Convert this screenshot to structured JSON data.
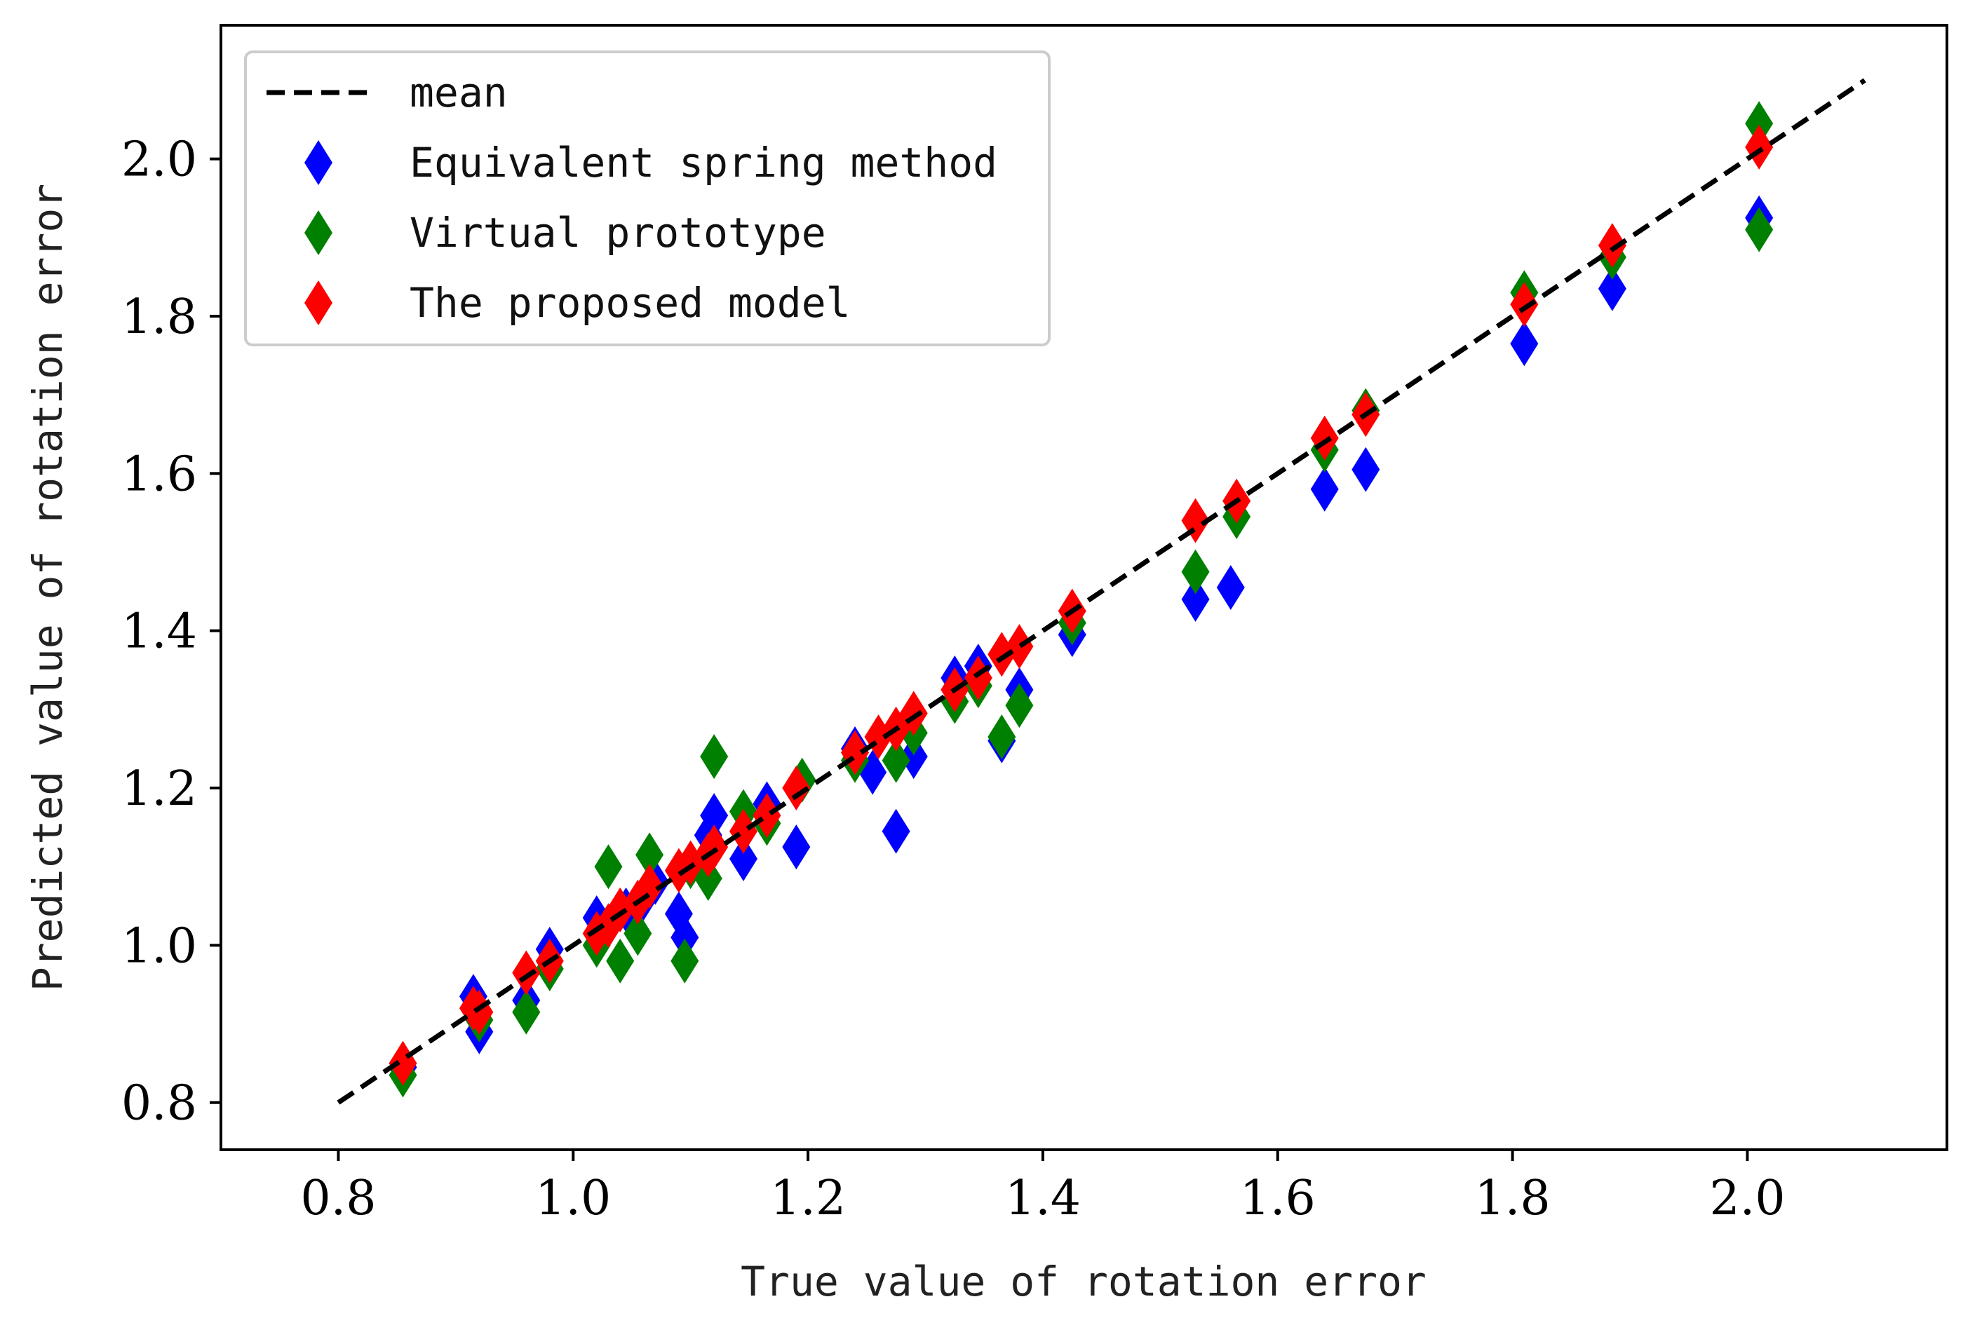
{
  "chart_data": {
    "type": "scatter",
    "title": "",
    "xlabel": "True value of rotation error",
    "ylabel": "Predicted value of rotation error",
    "xlim": [
      0.7,
      2.17
    ],
    "ylim": [
      0.74,
      2.17
    ],
    "xticks": [
      {
        "value": 0.8,
        "label": "0.8"
      },
      {
        "value": 1.0,
        "label": "1.0"
      },
      {
        "value": 1.2,
        "label": "1.2"
      },
      {
        "value": 1.4,
        "label": "1.4"
      },
      {
        "value": 1.6,
        "label": "1.6"
      },
      {
        "value": 1.8,
        "label": "1.8"
      },
      {
        "value": 2.0,
        "label": "2.0"
      }
    ],
    "yticks": [
      {
        "value": 0.8,
        "label": "0.8"
      },
      {
        "value": 1.0,
        "label": "1.0"
      },
      {
        "value": 1.2,
        "label": "1.2"
      },
      {
        "value": 1.4,
        "label": "1.4"
      },
      {
        "value": 1.6,
        "label": "1.6"
      },
      {
        "value": 1.8,
        "label": "1.8"
      },
      {
        "value": 2.0,
        "label": "2.0"
      }
    ],
    "grid": false,
    "legend_position": "top-left",
    "mean_line": {
      "name": "mean",
      "x": [
        0.8,
        2.1
      ],
      "y": [
        0.8,
        2.1
      ],
      "color": "#000000",
      "style": "dashed"
    },
    "series": [
      {
        "name": "Equivalent spring method",
        "color": "#0000ff",
        "marker": "thin-diamond",
        "x": [
          0.855,
          0.915,
          0.92,
          0.96,
          0.98,
          1.02,
          1.03,
          1.045,
          1.06,
          1.07,
          1.09,
          1.095,
          1.115,
          1.12,
          1.145,
          1.165,
          1.19,
          1.24,
          1.255,
          1.275,
          1.29,
          1.325,
          1.345,
          1.365,
          1.38,
          1.425,
          1.53,
          1.56,
          1.64,
          1.675,
          1.81,
          1.885,
          2.01
        ],
        "y": [
          0.845,
          0.935,
          0.89,
          0.93,
          0.995,
          1.035,
          1.025,
          1.045,
          1.06,
          1.08,
          1.04,
          1.01,
          1.14,
          1.165,
          1.11,
          1.18,
          1.125,
          1.25,
          1.22,
          1.145,
          1.24,
          1.34,
          1.355,
          1.26,
          1.325,
          1.395,
          1.44,
          1.455,
          1.58,
          1.605,
          1.765,
          1.835,
          1.925
        ]
      },
      {
        "name": "Virtual prototype",
        "color": "#008000",
        "marker": "thin-diamond",
        "x": [
          0.855,
          0.92,
          0.96,
          0.98,
          1.02,
          1.03,
          1.04,
          1.055,
          1.065,
          1.095,
          1.1,
          1.115,
          1.12,
          1.145,
          1.165,
          1.195,
          1.24,
          1.275,
          1.29,
          1.325,
          1.345,
          1.365,
          1.38,
          1.425,
          1.53,
          1.565,
          1.64,
          1.675,
          1.81,
          1.885,
          2.01,
          2.01
        ],
        "y": [
          0.835,
          0.905,
          0.915,
          0.97,
          1.0,
          1.1,
          0.98,
          1.015,
          1.115,
          0.98,
          1.1,
          1.085,
          1.24,
          1.17,
          1.155,
          1.21,
          1.235,
          1.235,
          1.27,
          1.31,
          1.33,
          1.265,
          1.305,
          1.41,
          1.475,
          1.545,
          1.63,
          1.68,
          1.83,
          1.875,
          2.045,
          1.91
        ]
      },
      {
        "name": "The proposed model",
        "color": "#ff0000",
        "marker": "thin-diamond",
        "x": [
          0.855,
          0.915,
          0.92,
          0.96,
          0.98,
          1.02,
          1.03,
          1.04,
          1.055,
          1.065,
          1.09,
          1.1,
          1.115,
          1.12,
          1.145,
          1.165,
          1.19,
          1.24,
          1.26,
          1.275,
          1.29,
          1.325,
          1.345,
          1.365,
          1.38,
          1.425,
          1.53,
          1.565,
          1.64,
          1.675,
          1.81,
          1.885,
          2.01
        ],
        "y": [
          0.85,
          0.92,
          0.915,
          0.965,
          0.98,
          1.015,
          1.025,
          1.045,
          1.055,
          1.075,
          1.095,
          1.105,
          1.115,
          1.125,
          1.145,
          1.165,
          1.2,
          1.245,
          1.265,
          1.275,
          1.295,
          1.325,
          1.34,
          1.37,
          1.38,
          1.425,
          1.54,
          1.565,
          1.645,
          1.675,
          1.815,
          1.89,
          2.015
        ]
      }
    ]
  }
}
